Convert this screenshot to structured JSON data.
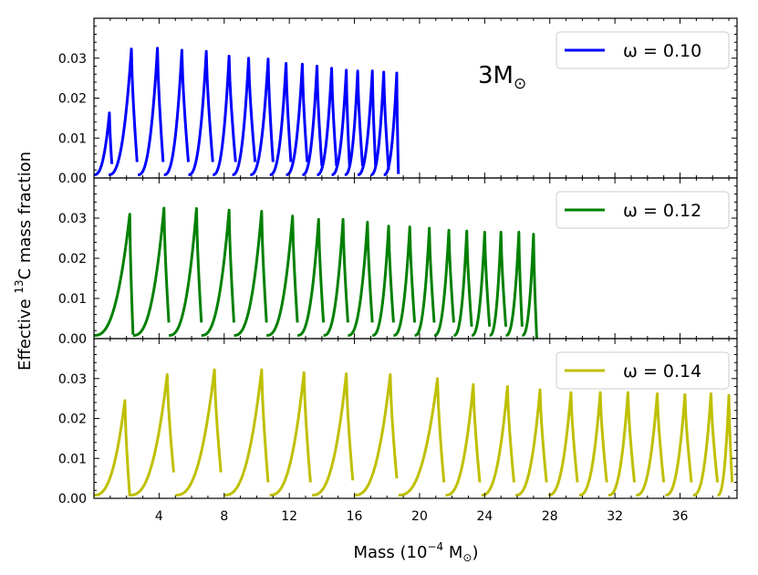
{
  "chart_data": {
    "type": "line",
    "xlabel_main": "Mass (10",
    "xlabel_exp": "−4",
    "xlabel_unit": " M",
    "xlabel_sub": "⊙",
    "xlabel_close": ")",
    "ylabel_main": "Effective ",
    "ylabel_sup": "13",
    "ylabel_rest": "C mass fraction",
    "annotation_main": "3M",
    "annotation_sub": "⊙",
    "xlim": [
      0,
      39.5
    ],
    "xticks": [
      4,
      8,
      12,
      16,
      20,
      24,
      28,
      32,
      36
    ],
    "xtick_labels": [
      "4",
      "8",
      "12",
      "16",
      "20",
      "24",
      "28",
      "32",
      "36"
    ],
    "ylim": [
      0,
      0.04
    ],
    "yticks": [
      0,
      0.01,
      0.02,
      0.03
    ],
    "ytick_labels": [
      "0.00",
      "0.01",
      "0.02",
      "0.03"
    ],
    "panels": [
      {
        "legend": "ω = 0.10",
        "color": "#0000ff",
        "pulses": [
          {
            "start": 0.0,
            "peak_x": 0.95,
            "peak_y": 0.0163,
            "end": 1.1,
            "end_y": 0.0035
          },
          {
            "start": 0.9,
            "peak_x": 2.3,
            "peak_y": 0.0323,
            "end": 2.65,
            "end_y": 0.004
          },
          {
            "start": 2.7,
            "peak_x": 3.9,
            "peak_y": 0.0325,
            "end": 4.25,
            "end_y": 0.004
          },
          {
            "start": 4.3,
            "peak_x": 5.4,
            "peak_y": 0.032,
            "end": 5.8,
            "end_y": 0.004
          },
          {
            "start": 5.8,
            "peak_x": 6.9,
            "peak_y": 0.0317,
            "end": 7.3,
            "end_y": 0.004
          },
          {
            "start": 7.3,
            "peak_x": 8.3,
            "peak_y": 0.0305,
            "end": 8.7,
            "end_y": 0.004
          },
          {
            "start": 8.5,
            "peak_x": 9.5,
            "peak_y": 0.03,
            "end": 9.9,
            "end_y": 0.004
          },
          {
            "start": 9.6,
            "peak_x": 10.7,
            "peak_y": 0.0298,
            "end": 11.0,
            "end_y": 0.004
          },
          {
            "start": 10.8,
            "peak_x": 11.8,
            "peak_y": 0.0287,
            "end": 12.1,
            "end_y": 0.004
          },
          {
            "start": 11.8,
            "peak_x": 12.8,
            "peak_y": 0.0285,
            "end": 13.1,
            "end_y": 0.004
          },
          {
            "start": 12.8,
            "peak_x": 13.7,
            "peak_y": 0.028,
            "end": 14.0,
            "end_y": 0.003
          },
          {
            "start": 13.7,
            "peak_x": 14.6,
            "peak_y": 0.0275,
            "end": 14.9,
            "end_y": 0.003
          },
          {
            "start": 14.6,
            "peak_x": 15.5,
            "peak_y": 0.027,
            "end": 15.7,
            "end_y": 0.003
          },
          {
            "start": 15.4,
            "peak_x": 16.2,
            "peak_y": 0.0268,
            "end": 16.5,
            "end_y": 0.003
          },
          {
            "start": 16.2,
            "peak_x": 17.1,
            "peak_y": 0.0268,
            "end": 17.3,
            "end_y": 0.003
          },
          {
            "start": 17.0,
            "peak_x": 17.8,
            "peak_y": 0.0265,
            "end": 18.1,
            "end_y": 0.002
          },
          {
            "start": 17.8,
            "peak_x": 18.6,
            "peak_y": 0.0263,
            "end": 18.7,
            "end_y": 0.001
          }
        ]
      },
      {
        "legend": "ω = 0.12",
        "color": "#008000",
        "pulses": [
          {
            "start": 0.0,
            "peak_x": 2.2,
            "peak_y": 0.031,
            "end": 2.4,
            "end_y": 0.001
          },
          {
            "start": 2.4,
            "peak_x": 4.3,
            "peak_y": 0.0325,
            "end": 4.6,
            "end_y": 0.004
          },
          {
            "start": 4.6,
            "peak_x": 6.3,
            "peak_y": 0.0324,
            "end": 6.6,
            "end_y": 0.004
          },
          {
            "start": 6.6,
            "peak_x": 8.3,
            "peak_y": 0.032,
            "end": 8.6,
            "end_y": 0.004
          },
          {
            "start": 8.6,
            "peak_x": 10.3,
            "peak_y": 0.0317,
            "end": 10.6,
            "end_y": 0.004
          },
          {
            "start": 10.6,
            "peak_x": 12.2,
            "peak_y": 0.0305,
            "end": 12.5,
            "end_y": 0.004
          },
          {
            "start": 12.5,
            "peak_x": 13.8,
            "peak_y": 0.0297,
            "end": 14.1,
            "end_y": 0.004
          },
          {
            "start": 14.1,
            "peak_x": 15.3,
            "peak_y": 0.0297,
            "end": 15.6,
            "end_y": 0.004
          },
          {
            "start": 15.6,
            "peak_x": 16.8,
            "peak_y": 0.029,
            "end": 17.1,
            "end_y": 0.004
          },
          {
            "start": 17.1,
            "peak_x": 18.1,
            "peak_y": 0.028,
            "end": 18.4,
            "end_y": 0.004
          },
          {
            "start": 18.4,
            "peak_x": 19.4,
            "peak_y": 0.0278,
            "end": 19.7,
            "end_y": 0.004
          },
          {
            "start": 19.7,
            "peak_x": 20.6,
            "peak_y": 0.0275,
            "end": 20.9,
            "end_y": 0.004
          },
          {
            "start": 20.9,
            "peak_x": 21.8,
            "peak_y": 0.027,
            "end": 22.1,
            "end_y": 0.004
          },
          {
            "start": 22.1,
            "peak_x": 22.9,
            "peak_y": 0.0268,
            "end": 23.2,
            "end_y": 0.003
          },
          {
            "start": 23.2,
            "peak_x": 24.0,
            "peak_y": 0.0265,
            "end": 24.3,
            "end_y": 0.003
          },
          {
            "start": 24.3,
            "peak_x": 25.0,
            "peak_y": 0.0265,
            "end": 25.3,
            "end_y": 0.003
          },
          {
            "start": 25.3,
            "peak_x": 26.1,
            "peak_y": 0.0265,
            "end": 26.3,
            "end_y": 0.003
          },
          {
            "start": 26.3,
            "peak_x": 27.0,
            "peak_y": 0.026,
            "end": 27.2,
            "end_y": 0.0
          }
        ]
      },
      {
        "legend": "ω = 0.14",
        "color": "#bfbf00",
        "pulses": [
          {
            "start": 0.0,
            "peak_x": 1.9,
            "peak_y": 0.0245,
            "end": 2.2,
            "end_y": 0.0005
          },
          {
            "start": 2.2,
            "peak_x": 4.5,
            "peak_y": 0.031,
            "end": 4.9,
            "end_y": 0.0065
          },
          {
            "start": 5.0,
            "peak_x": 7.4,
            "peak_y": 0.0322,
            "end": 7.8,
            "end_y": 0.0065
          },
          {
            "start": 8.0,
            "peak_x": 10.3,
            "peak_y": 0.0322,
            "end": 10.7,
            "end_y": 0.004
          },
          {
            "start": 10.8,
            "peak_x": 12.9,
            "peak_y": 0.0315,
            "end": 13.3,
            "end_y": 0.004
          },
          {
            "start": 13.4,
            "peak_x": 15.5,
            "peak_y": 0.0312,
            "end": 15.9,
            "end_y": 0.0045
          },
          {
            "start": 16.0,
            "peak_x": 18.2,
            "peak_y": 0.031,
            "end": 18.6,
            "end_y": 0.005
          },
          {
            "start": 18.7,
            "peak_x": 21.1,
            "peak_y": 0.03,
            "end": 21.5,
            "end_y": 0.004
          },
          {
            "start": 21.6,
            "peak_x": 23.3,
            "peak_y": 0.0285,
            "end": 23.7,
            "end_y": 0.004
          },
          {
            "start": 23.8,
            "peak_x": 25.4,
            "peak_y": 0.028,
            "end": 25.8,
            "end_y": 0.004
          },
          {
            "start": 25.9,
            "peak_x": 27.4,
            "peak_y": 0.0272,
            "end": 27.8,
            "end_y": 0.004
          },
          {
            "start": 27.9,
            "peak_x": 29.3,
            "peak_y": 0.0265,
            "end": 29.7,
            "end_y": 0.004
          },
          {
            "start": 29.8,
            "peak_x": 31.1,
            "peak_y": 0.0265,
            "end": 31.5,
            "end_y": 0.004
          },
          {
            "start": 31.6,
            "peak_x": 32.8,
            "peak_y": 0.0265,
            "end": 33.2,
            "end_y": 0.004
          },
          {
            "start": 33.3,
            "peak_x": 34.6,
            "peak_y": 0.0262,
            "end": 35.0,
            "end_y": 0.004
          },
          {
            "start": 35.1,
            "peak_x": 36.3,
            "peak_y": 0.026,
            "end": 36.7,
            "end_y": 0.004
          },
          {
            "start": 36.8,
            "peak_x": 37.9,
            "peak_y": 0.0262,
            "end": 38.3,
            "end_y": 0.004
          },
          {
            "start": 38.3,
            "peak_x": 39.0,
            "peak_y": 0.0258,
            "end": 39.2,
            "end_y": 0.004
          }
        ]
      }
    ]
  }
}
